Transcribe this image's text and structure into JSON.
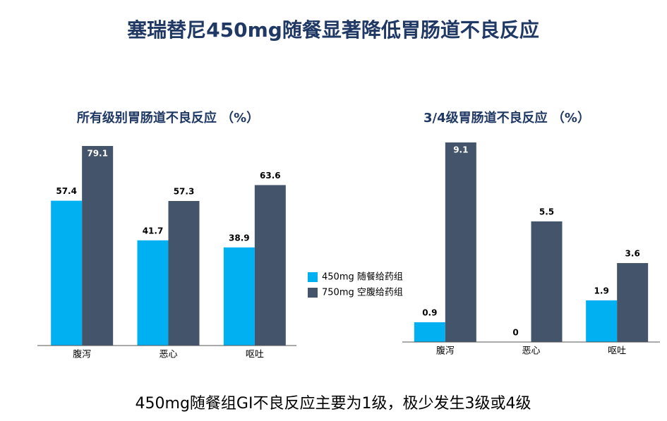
{
  "title": "塞瑞替尼450mg随餐显著降低胃肠道不良反应",
  "footnote": "450mg随餐组GI不良反应主要为1级，极少发生3级或4级",
  "chart_data": [
    {
      "type": "bar",
      "title": "所有级别胃肠道不良反应 （%）",
      "categories": [
        "腹泻",
        "恶心",
        "呕吐"
      ],
      "series": [
        {
          "name": "450mg 随餐给药组",
          "color": "#00b0f0",
          "values": [
            57.4,
            41.7,
            38.9
          ]
        },
        {
          "name": "750mg 空腹给药组",
          "color": "#44546a",
          "values": [
            79.1,
            57.3,
            63.6
          ]
        }
      ]
    },
    {
      "type": "bar",
      "title": "3/4级胃肠道不良反应 （%）",
      "categories": [
        "腹泻",
        "恶心",
        "呕吐"
      ],
      "series": [
        {
          "color": "#00b0f0",
          "values": [
            0.9,
            0,
            1.9
          ]
        },
        {
          "color": "#44546a",
          "values": [
            9.1,
            5.5,
            3.6
          ]
        }
      ]
    }
  ]
}
